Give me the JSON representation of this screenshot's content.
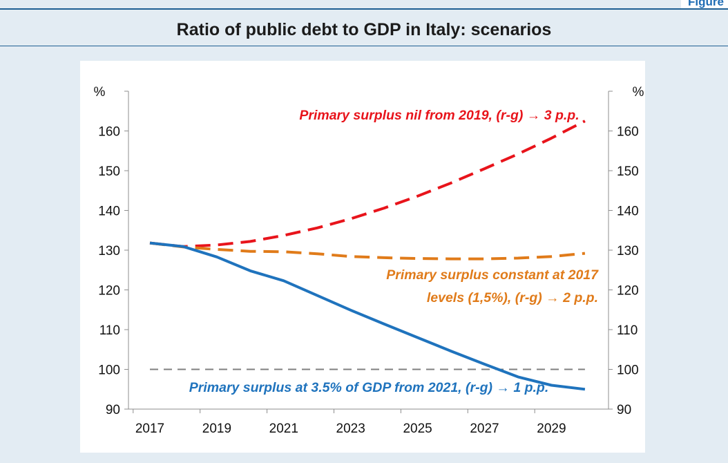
{
  "figure_tag": "Figure",
  "title": "Ratio of public debt to GDP in Italy: scenarios",
  "colors": {
    "background": "#e3ecf3",
    "rule": "#1f5f93",
    "red": "#e8141b",
    "orange": "#e07b1a",
    "blue": "#1f73bd",
    "reference": "#7f7f7f"
  },
  "chart_data": {
    "type": "line",
    "ylabel_left": "%",
    "ylabel_right": "%",
    "xlim": [
      2017,
      2030
    ],
    "ylim": [
      90,
      170
    ],
    "x_ticks": [
      "2017",
      "2019",
      "2021",
      "2023",
      "2025",
      "2027",
      "2029"
    ],
    "y_ticks": [
      "90",
      "100",
      "110",
      "120",
      "130",
      "140",
      "150",
      "160"
    ],
    "x": [
      2017,
      2018,
      2019,
      2020,
      2021,
      2022,
      2023,
      2024,
      2025,
      2026,
      2027,
      2028,
      2029,
      2030
    ],
    "series": [
      {
        "values": [
          131.8,
          130.9,
          131.3,
          132.2,
          133.7,
          135.6,
          137.9,
          140.6,
          143.6,
          146.9,
          150.5,
          154.2,
          158.2,
          162.5
        ],
        "color": "#e8141b",
        "dash": "dashed",
        "label": "Primary surplus nil from 2019, (r-g) → 3 p.p."
      },
      {
        "values": [
          131.8,
          130.8,
          130.2,
          129.7,
          129.6,
          129.1,
          128.4,
          128.1,
          127.9,
          127.8,
          127.8,
          128.0,
          128.4,
          129.2
        ],
        "color": "#e07b1a",
        "dash": "dashed",
        "label_line1": "Primary surplus constant at 2017",
        "label_line2": "levels (1,5%), (r-g) → 2 p.p."
      },
      {
        "values": [
          131.8,
          130.9,
          128.3,
          124.8,
          122.3,
          118.6,
          114.9,
          111.4,
          108.0,
          104.6,
          101.3,
          98.1,
          96.0,
          95.0
        ],
        "color": "#1f73bd",
        "dash": "solid",
        "label": "Primary surplus at 3.5% of GDP from 2021, (r-g) → 1 p.p."
      },
      {
        "values": [
          100,
          100,
          100,
          100,
          100,
          100,
          100,
          100,
          100,
          100,
          100,
          100,
          100,
          100
        ],
        "color": "#7f7f7f",
        "dash": "dashed"
      }
    ],
    "grid": false
  }
}
